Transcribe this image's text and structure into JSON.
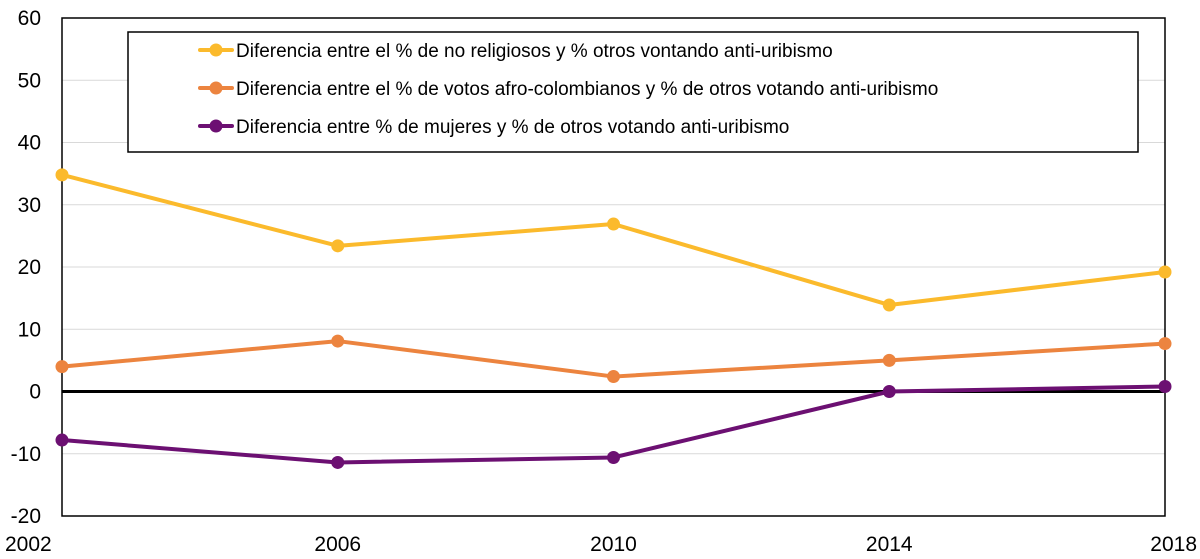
{
  "chart_data": {
    "type": "line",
    "x": [
      2002,
      2006,
      2010,
      2014,
      2018
    ],
    "xtick_labels": [
      "2002",
      "2006",
      "2010",
      "2014",
      "2018"
    ],
    "ylim": [
      -20,
      60
    ],
    "yticks": [
      -20,
      -10,
      0,
      10,
      20,
      30,
      40,
      50,
      60
    ],
    "ytick_labels": [
      "-20",
      "-10",
      "0",
      "10",
      "20",
      "30",
      "40",
      "50",
      "60"
    ],
    "grid": "horizontal",
    "legend_position": "top",
    "zero_line": true,
    "series": [
      {
        "name": "Diferencia entre el % de no religiosos y % otros vontando anti-uribismo",
        "color": "#FBBA2C",
        "values": [
          34.8,
          23.4,
          26.9,
          13.9,
          19.2
        ]
      },
      {
        "name": "Diferencia entre el % de votos afro-colombianos y % de otros votando anti-uribismo",
        "color": "#EC843F",
        "values": [
          4.0,
          8.1,
          2.4,
          5.0,
          7.7
        ]
      },
      {
        "name": "Diferencia entre % de mujeres y % de otros votando anti-uribismo",
        "color": "#6C1072",
        "values": [
          -7.8,
          -11.4,
          -10.6,
          0.0,
          0.8
        ]
      }
    ]
  }
}
